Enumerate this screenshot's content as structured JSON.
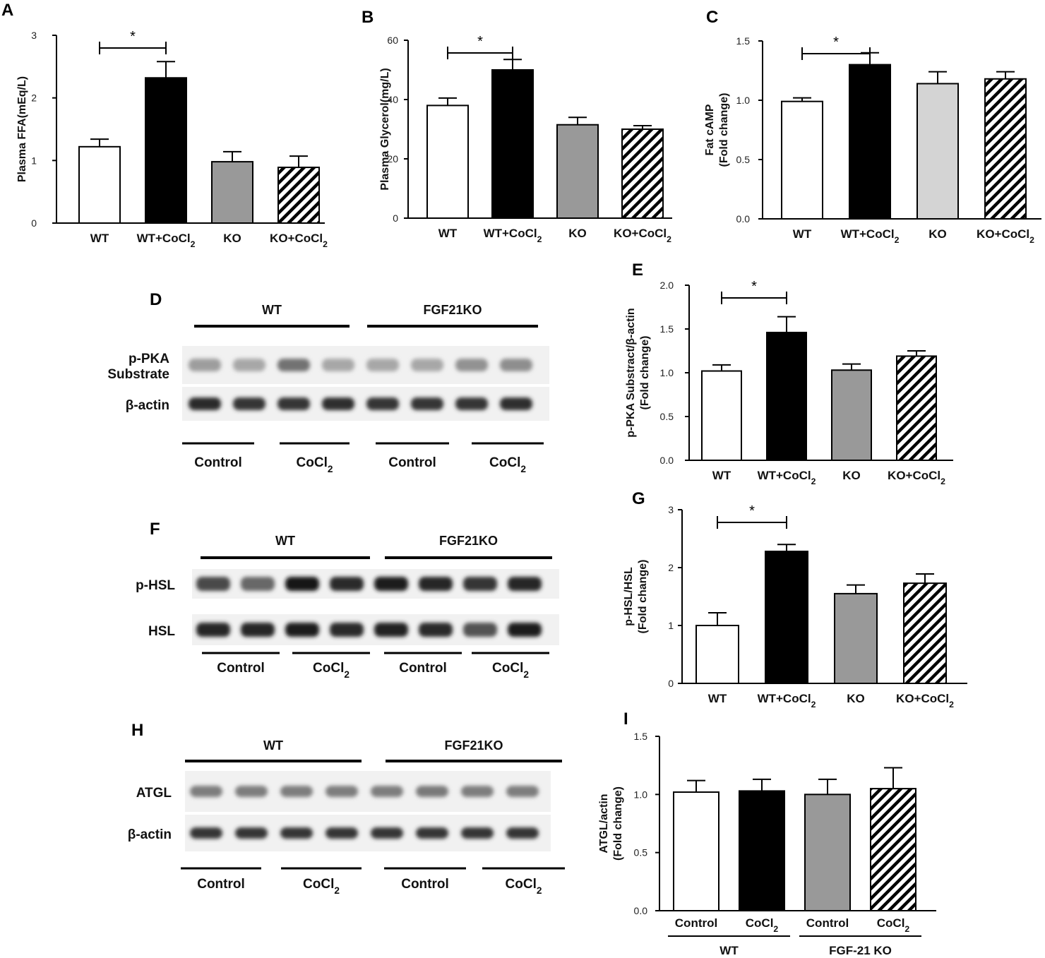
{
  "colors": {
    "wt": "#ffffff",
    "wt_cocl2": "#000000",
    "ko": "#999999",
    "ko_light": "#d4d4d4",
    "ko_cocl2": "hatched"
  },
  "panel_labels": [
    "A",
    "B",
    "C",
    "D",
    "E",
    "F",
    "G",
    "H",
    "I"
  ],
  "chart_data": [
    {
      "id": "A",
      "type": "bar",
      "categories": [
        "WT",
        "WT+CoCl2",
        "KO",
        "KO+CoCl2"
      ],
      "values": [
        1.22,
        2.32,
        0.98,
        0.89
      ],
      "errors": [
        0.12,
        0.26,
        0.16,
        0.18
      ],
      "ylabel": "Plasma FFA(mEq/L)",
      "ylim": [
        0,
        3
      ],
      "yticks": [
        "0",
        "1",
        "2",
        "3"
      ],
      "significance": {
        "between": [
          0,
          1
        ],
        "label": "*"
      },
      "fills": [
        "white",
        "black",
        "gray",
        "hatch"
      ]
    },
    {
      "id": "B",
      "type": "bar",
      "categories": [
        "WT",
        "WT+CoCl2",
        "KO",
        "KO+CoCl2"
      ],
      "values": [
        38,
        50,
        31.5,
        30
      ],
      "errors": [
        2.5,
        3.5,
        2.5,
        1.2
      ],
      "ylabel": "Plasma Glycerol(mg/L)",
      "ylim": [
        0,
        60
      ],
      "yticks": [
        "0",
        "20",
        "40",
        "60"
      ],
      "significance": {
        "between": [
          0,
          1
        ],
        "label": "*"
      },
      "fills": [
        "white",
        "black",
        "gray",
        "hatch"
      ]
    },
    {
      "id": "C",
      "type": "bar",
      "categories": [
        "WT",
        "WT+CoCl2",
        "KO",
        "KO+CoCl2"
      ],
      "values": [
        0.99,
        1.3,
        1.14,
        1.18
      ],
      "errors": [
        0.03,
        0.1,
        0.1,
        0.06
      ],
      "ylabel": [
        "Fat cAMP",
        "(Fold change)"
      ],
      "ylim": [
        0,
        1.5
      ],
      "yticks": [
        "0.0",
        "0.5",
        "1.0",
        "1.5"
      ],
      "significance": {
        "between": [
          0,
          1
        ],
        "label": "*"
      },
      "fills": [
        "white",
        "black",
        "light",
        "hatch"
      ]
    },
    {
      "id": "E",
      "type": "bar",
      "categories": [
        "WT",
        "WT+CoCl2",
        "KO",
        "KO+CoCl2"
      ],
      "values": [
        1.02,
        1.46,
        1.03,
        1.19
      ],
      "errors": [
        0.07,
        0.18,
        0.07,
        0.06
      ],
      "ylabel": [
        "p-PKA Substract/β-actin",
        "(Fold change)"
      ],
      "ylim": [
        0,
        2.0
      ],
      "yticks": [
        "0.0",
        "0.5",
        "1.0",
        "1.5",
        "2.0"
      ],
      "significance": {
        "between": [
          0,
          1
        ],
        "label": "*"
      },
      "fills": [
        "white",
        "black",
        "gray",
        "hatch"
      ]
    },
    {
      "id": "G",
      "type": "bar",
      "categories": [
        "WT",
        "WT+CoCl2",
        "KO",
        "KO+CoCl2"
      ],
      "values": [
        1.0,
        2.28,
        1.55,
        1.73
      ],
      "errors": [
        0.22,
        0.12,
        0.15,
        0.16
      ],
      "ylabel": [
        "p-HSL/HSL",
        "(Fold change)"
      ],
      "ylim": [
        0,
        3
      ],
      "yticks": [
        "0",
        "1",
        "2",
        "3"
      ],
      "significance": {
        "between": [
          0,
          1
        ],
        "label": "*"
      },
      "fills": [
        "white",
        "black",
        "gray",
        "hatch"
      ]
    },
    {
      "id": "I",
      "type": "bar",
      "categories": [
        "Control",
        "CoCl2",
        "Control",
        "CoCl2"
      ],
      "groups": [
        {
          "label": "WT",
          "span": [
            0,
            1
          ]
        },
        {
          "label": "FGF-21 KO",
          "span": [
            2,
            3
          ]
        }
      ],
      "values": [
        1.02,
        1.03,
        1.0,
        1.05
      ],
      "errors": [
        0.1,
        0.1,
        0.13,
        0.18
      ],
      "ylabel": [
        "ATGL/actin",
        "(Fold change)"
      ],
      "ylim": [
        0,
        1.5
      ],
      "yticks": [
        "0.0",
        "0.5",
        "1.0",
        "1.5"
      ],
      "fills": [
        "white",
        "black",
        "gray",
        "hatch"
      ]
    }
  ],
  "blots": [
    {
      "id": "D",
      "groups": [
        "WT",
        "FGF21KO"
      ],
      "rows": [
        {
          "label": [
            "p-PKA",
            "Substrate"
          ],
          "intensity": [
            0.35,
            0.3,
            0.55,
            0.3,
            0.3,
            0.3,
            0.4,
            0.42
          ]
        },
        {
          "label": [
            "β-actin"
          ],
          "intensity": [
            0.9,
            0.85,
            0.85,
            0.88,
            0.85,
            0.85,
            0.85,
            0.88
          ]
        }
      ],
      "treatments": [
        "Control",
        "CoCl2",
        "Control",
        "CoCl2"
      ]
    },
    {
      "id": "F",
      "groups": [
        "WT",
        "FGF21KO"
      ],
      "rows": [
        {
          "label": [
            "p-HSL"
          ],
          "intensity": [
            0.75,
            0.6,
            0.98,
            0.9,
            0.95,
            0.92,
            0.85,
            0.92
          ]
        },
        {
          "label": [
            "HSL"
          ],
          "intensity": [
            0.92,
            0.92,
            0.95,
            0.9,
            0.93,
            0.9,
            0.7,
            0.95
          ]
        }
      ],
      "treatments": [
        "Control",
        "CoCl2",
        "Control",
        "CoCl2"
      ]
    },
    {
      "id": "H",
      "groups": [
        "WT",
        "FGF21KO"
      ],
      "rows": [
        {
          "label": [
            "ATGL"
          ],
          "intensity": [
            0.5,
            0.5,
            0.5,
            0.5,
            0.5,
            0.52,
            0.5,
            0.5
          ]
        },
        {
          "label": [
            "β-actin"
          ],
          "intensity": [
            0.85,
            0.85,
            0.85,
            0.85,
            0.85,
            0.85,
            0.85,
            0.85
          ]
        }
      ],
      "treatments": [
        "Control",
        "CoCl2",
        "Control",
        "CoCl2"
      ]
    }
  ]
}
